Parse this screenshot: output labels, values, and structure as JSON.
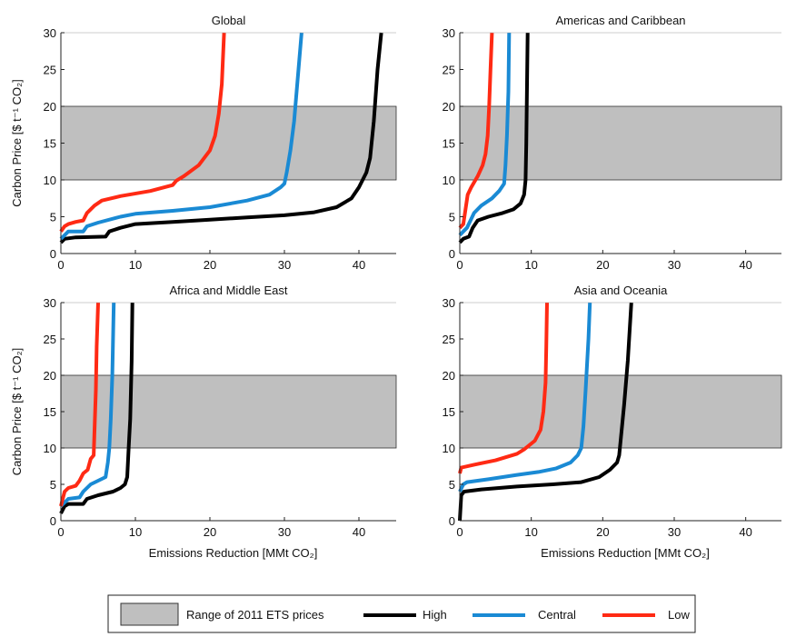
{
  "figure": {
    "legend": {
      "band_label": "Range of 2011 ETS prices",
      "band_color": "#bfbfbf",
      "position": "bottom-center"
    },
    "series_styles": [
      {
        "name": "High",
        "color": "#000000"
      },
      {
        "name": "Central",
        "color": "#1a8ad4"
      },
      {
        "name": "Low",
        "color": "#ff2a14"
      }
    ]
  },
  "chart_data": [
    {
      "type": "line",
      "title": "Global",
      "xlabel": "",
      "ylabel": "Carbon Price [$ t⁻¹ CO₂]",
      "xlim": [
        0,
        45
      ],
      "ylim": [
        0,
        30
      ],
      "xticks": [
        0,
        10,
        20,
        30,
        40
      ],
      "yticks": [
        0,
        5,
        10,
        15,
        20,
        25,
        30
      ],
      "shaded_band": [
        10,
        20
      ],
      "grid": false,
      "series": [
        {
          "name": "High",
          "points": [
            [
              0,
              1.5
            ],
            [
              0.5,
              2
            ],
            [
              2,
              2.2
            ],
            [
              6,
              2.3
            ],
            [
              6.5,
              3
            ],
            [
              8,
              3.5
            ],
            [
              10,
              4
            ],
            [
              15,
              4.3
            ],
            [
              20,
              4.6
            ],
            [
              25,
              4.9
            ],
            [
              30,
              5.2
            ],
            [
              34,
              5.6
            ],
            [
              37,
              6.3
            ],
            [
              39,
              7.5
            ],
            [
              40,
              9
            ],
            [
              40.5,
              10
            ],
            [
              41,
              11
            ],
            [
              41.5,
              13
            ],
            [
              42,
              18
            ],
            [
              42.5,
              25
            ],
            [
              43,
              30
            ]
          ]
        },
        {
          "name": "Central",
          "points": [
            [
              0,
              2
            ],
            [
              0.5,
              2.5
            ],
            [
              1,
              3
            ],
            [
              3,
              3
            ],
            [
              3.5,
              3.7
            ],
            [
              5,
              4.2
            ],
            [
              8,
              5
            ],
            [
              10,
              5.4
            ],
            [
              15,
              5.8
            ],
            [
              20,
              6.3
            ],
            [
              25,
              7.2
            ],
            [
              28,
              8
            ],
            [
              29.5,
              9
            ],
            [
              30,
              9.5
            ],
            [
              30.3,
              11
            ],
            [
              30.8,
              14
            ],
            [
              31.3,
              18
            ],
            [
              31.8,
              24
            ],
            [
              32.3,
              30
            ]
          ]
        },
        {
          "name": "Low",
          "points": [
            [
              0,
              3
            ],
            [
              0.5,
              3.7
            ],
            [
              1,
              4
            ],
            [
              2,
              4.3
            ],
            [
              3,
              4.5
            ],
            [
              3.5,
              5.5
            ],
            [
              4.5,
              6.5
            ],
            [
              5.5,
              7.2
            ],
            [
              8,
              7.8
            ],
            [
              12,
              8.5
            ],
            [
              15,
              9.3
            ],
            [
              15.5,
              9.9
            ],
            [
              16.5,
              10.5
            ],
            [
              18.5,
              12
            ],
            [
              20,
              14
            ],
            [
              20.7,
              16
            ],
            [
              21.2,
              19
            ],
            [
              21.6,
              23
            ],
            [
              21.9,
              30
            ]
          ]
        }
      ]
    },
    {
      "type": "line",
      "title": "Americas and Caribbean",
      "xlabel": "",
      "ylabel": "",
      "xlim": [
        0,
        45
      ],
      "ylim": [
        0,
        30
      ],
      "xticks": [
        0,
        10,
        20,
        30,
        40
      ],
      "yticks": [
        0,
        5,
        10,
        15,
        20,
        25,
        30
      ],
      "shaded_band": [
        10,
        20
      ],
      "grid": false,
      "series": [
        {
          "name": "High",
          "points": [
            [
              0,
              1.5
            ],
            [
              0.5,
              2
            ],
            [
              1.3,
              2.3
            ],
            [
              1.8,
              3.5
            ],
            [
              2.5,
              4.5
            ],
            [
              4,
              5
            ],
            [
              6,
              5.5
            ],
            [
              7.5,
              6
            ],
            [
              8.5,
              6.8
            ],
            [
              9,
              8
            ],
            [
              9.2,
              10
            ],
            [
              9.3,
              15
            ],
            [
              9.5,
              30
            ]
          ]
        },
        {
          "name": "Central",
          "points": [
            [
              0,
              2.5
            ],
            [
              0.5,
              3
            ],
            [
              1,
              3.5
            ],
            [
              1.5,
              4.5
            ],
            [
              2,
              5.5
            ],
            [
              3,
              6.5
            ],
            [
              4.5,
              7.5
            ],
            [
              5.5,
              8.5
            ],
            [
              6.2,
              9.5
            ],
            [
              6.4,
              12
            ],
            [
              6.6,
              16
            ],
            [
              6.8,
              22
            ],
            [
              6.9,
              30
            ]
          ]
        },
        {
          "name": "Low",
          "points": [
            [
              0,
              3.5
            ],
            [
              0.5,
              4
            ],
            [
              0.8,
              6
            ],
            [
              1.1,
              8
            ],
            [
              1.6,
              9
            ],
            [
              2.5,
              10.5
            ],
            [
              3.2,
              12
            ],
            [
              3.6,
              13.5
            ],
            [
              3.9,
              16
            ],
            [
              4.1,
              20
            ],
            [
              4.3,
              25
            ],
            [
              4.5,
              30
            ]
          ]
        }
      ]
    },
    {
      "type": "line",
      "title": "Africa and Middle East",
      "xlabel": "Emissions Reduction [MMt CO₂]",
      "ylabel": "Carbon Price [$ t⁻¹ CO₂]",
      "xlim": [
        0,
        45
      ],
      "ylim": [
        0,
        30
      ],
      "xticks": [
        0,
        10,
        20,
        30,
        40
      ],
      "yticks": [
        0,
        5,
        10,
        15,
        20,
        25,
        30
      ],
      "shaded_band": [
        10,
        20
      ],
      "grid": false,
      "series": [
        {
          "name": "High",
          "points": [
            [
              0,
              1
            ],
            [
              0.5,
              2
            ],
            [
              1,
              2.3
            ],
            [
              3,
              2.3
            ],
            [
              3.5,
              3
            ],
            [
              5,
              3.5
            ],
            [
              7,
              4
            ],
            [
              8,
              4.5
            ],
            [
              8.6,
              5
            ],
            [
              8.9,
              6
            ],
            [
              9,
              8
            ],
            [
              9.1,
              10
            ],
            [
              9.3,
              14
            ],
            [
              9.5,
              22
            ],
            [
              9.6,
              30
            ]
          ]
        },
        {
          "name": "Central",
          "points": [
            [
              0,
              2
            ],
            [
              0.5,
              2.5
            ],
            [
              1,
              3
            ],
            [
              2.5,
              3.2
            ],
            [
              3,
              4
            ],
            [
              4,
              5
            ],
            [
              5,
              5.5
            ],
            [
              6,
              6
            ],
            [
              6.3,
              8
            ],
            [
              6.5,
              10
            ],
            [
              6.7,
              14
            ],
            [
              6.9,
              20
            ],
            [
              7.1,
              30
            ]
          ]
        },
        {
          "name": "Low",
          "points": [
            [
              0,
              2
            ],
            [
              0.5,
              4
            ],
            [
              1,
              4.5
            ],
            [
              2,
              4.8
            ],
            [
              2.5,
              5.5
            ],
            [
              3,
              6.5
            ],
            [
              3.6,
              7
            ],
            [
              4,
              8.5
            ],
            [
              4.4,
              9
            ],
            [
              4.5,
              12
            ],
            [
              4.7,
              18
            ],
            [
              4.8,
              24
            ],
            [
              5,
              30
            ]
          ]
        }
      ]
    },
    {
      "type": "line",
      "title": "Asia and Oceania",
      "xlabel": "Emissions Reduction [MMt CO₂]",
      "ylabel": "",
      "xlim": [
        0,
        45
      ],
      "ylim": [
        0,
        30
      ],
      "xticks": [
        0,
        10,
        20,
        30,
        40
      ],
      "yticks": [
        0,
        5,
        10,
        15,
        20,
        25,
        30
      ],
      "shaded_band": [
        10,
        20
      ],
      "grid": false,
      "series": [
        {
          "name": "High",
          "points": [
            [
              0,
              0
            ],
            [
              0.2,
              3.5
            ],
            [
              0.6,
              4
            ],
            [
              3,
              4.3
            ],
            [
              8,
              4.7
            ],
            [
              13,
              5
            ],
            [
              17,
              5.3
            ],
            [
              19.5,
              6
            ],
            [
              21,
              7
            ],
            [
              22,
              8
            ],
            [
              22.3,
              9
            ],
            [
              22.5,
              11
            ],
            [
              23,
              16
            ],
            [
              23.5,
              22
            ],
            [
              24,
              30
            ]
          ]
        },
        {
          "name": "Central",
          "points": [
            [
              0,
              4
            ],
            [
              0.5,
              5
            ],
            [
              1,
              5.3
            ],
            [
              4,
              5.7
            ],
            [
              8,
              6.3
            ],
            [
              11,
              6.7
            ],
            [
              13.5,
              7.2
            ],
            [
              15.5,
              8
            ],
            [
              16.5,
              9
            ],
            [
              17,
              10
            ],
            [
              17.3,
              13
            ],
            [
              17.6,
              18
            ],
            [
              18,
              25
            ],
            [
              18.2,
              30
            ]
          ]
        },
        {
          "name": "Low",
          "points": [
            [
              0,
              6.5
            ],
            [
              0.2,
              7.3
            ],
            [
              2,
              7.7
            ],
            [
              5,
              8.3
            ],
            [
              8,
              9.2
            ],
            [
              9,
              9.8
            ],
            [
              10.5,
              11
            ],
            [
              11.3,
              12.5
            ],
            [
              11.7,
              15
            ],
            [
              12,
              19
            ],
            [
              12.1,
              24
            ],
            [
              12.2,
              30
            ]
          ]
        }
      ]
    }
  ]
}
